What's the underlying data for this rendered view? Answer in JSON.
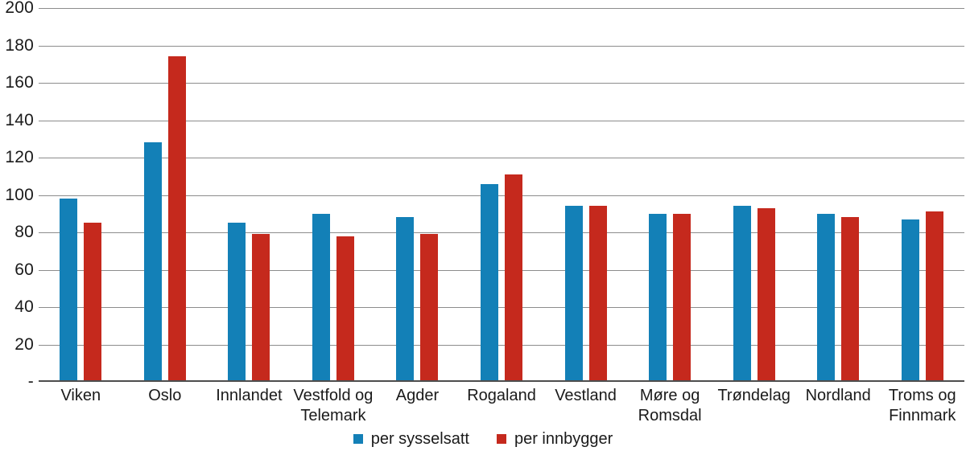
{
  "chart_data": {
    "type": "bar",
    "title": "",
    "categories": [
      "Viken",
      "Oslo",
      "Innlandet",
      "Vestfold og Telemark",
      "Agder",
      "Rogaland",
      "Vestland",
      "Møre og Romsdal",
      "Trøndelag",
      "Nordland",
      "Troms og Finnmark"
    ],
    "series": [
      {
        "name": "per sysselsatt",
        "color": "#1380B7",
        "values": [
          98,
          128,
          85,
          90,
          88,
          106,
          94,
          90,
          94,
          90,
          87
        ]
      },
      {
        "name": "per innbygger",
        "color": "#C5291D",
        "values": [
          85,
          174,
          79,
          78,
          79,
          111,
          94,
          90,
          93,
          88,
          91
        ]
      }
    ],
    "ylim": [
      0,
      200
    ],
    "y_tick_step": 20,
    "y_tick_labels_top_to_bottom": [
      "200",
      "180",
      "160",
      "140",
      "120",
      "100",
      "80",
      "60",
      "40",
      "20",
      "-"
    ],
    "grid": true,
    "legend_position": "bottom",
    "legend": [
      "per sysselsatt",
      "per innbygger"
    ]
  },
  "colors": {
    "bar_blue": "#1380B7",
    "bar_red": "#C5291D",
    "gridline": "#8C8C8C",
    "baseline": "#4D4D4D",
    "text": "#1A1A1A",
    "background": "#FFFFFF"
  }
}
